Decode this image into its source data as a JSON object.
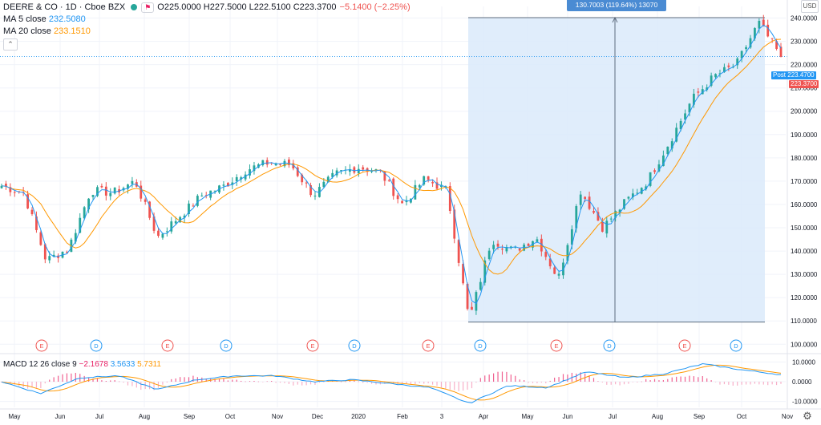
{
  "header": {
    "symbol": "DEERE & CO · 1D · Cboe BZX",
    "ohlc": "O225.0000 H227.5000 L222.5100 C223.3700",
    "change": "−5.1400 (−2.25%)"
  },
  "indicators": {
    "ma5_label": "MA 5 close",
    "ma5_value": "232.5080",
    "ma20_label": "MA 20 close",
    "ma20_value": "233.1510",
    "macd_label": "MACD 12 26 close 9",
    "macd_hist": "−2.1678",
    "macd_line": "3.5633",
    "macd_signal": "5.7311"
  },
  "currency": "USD",
  "measure_label": "130.7003 (119.64%) 13070",
  "price_tags": {
    "post_label": "Post",
    "post_value": "223.4700",
    "last_value": "223.3700"
  },
  "colors": {
    "up": "#26a69a",
    "down": "#ef5350",
    "ma5": "#2196f3",
    "ma20": "#ff9800",
    "measure_fill": "#dbeafa",
    "earnings": "#ef5350",
    "dividend": "#2196f3"
  },
  "chart_data": {
    "type": "candlestick",
    "title": "DEERE & CO · 1D · Cboe BZX",
    "y_axis": {
      "range": [
        97,
        245
      ],
      "ticks": [
        "100.0000",
        "110.0000",
        "120.0000",
        "130.0000",
        "140.0000",
        "150.0000",
        "160.0000",
        "170.0000",
        "180.0000",
        "190.0000",
        "200.0000",
        "210.0000",
        "220.0000",
        "230.0000",
        "240.0000"
      ]
    },
    "x_axis": {
      "ticks": [
        "May",
        "Jun",
        "Jul",
        "Aug",
        "Sep",
        "Oct",
        "Nov",
        "Dec",
        "2020",
        "Feb",
        "3",
        "Apr",
        "May",
        "Jun",
        "Jul",
        "Aug",
        "Sep",
        "Oct",
        "Nov"
      ]
    },
    "price_path": [
      [
        "May",
        168
      ],
      [
        "May",
        165
      ],
      [
        "Jun",
        136
      ],
      [
        "Jun",
        141
      ],
      [
        "Jul",
        166
      ],
      [
        "Jul",
        165
      ],
      [
        "Aug",
        170
      ],
      [
        "Aug",
        146
      ],
      [
        "Sep",
        155
      ],
      [
        "Sep",
        164
      ],
      [
        "Oct",
        168
      ],
      [
        "Oct",
        175
      ],
      [
        "Nov",
        178
      ],
      [
        "Nov",
        177
      ],
      [
        "Dec",
        164
      ],
      [
        "Dec",
        173
      ],
      [
        "2020",
        176
      ],
      [
        "2020",
        174
      ],
      [
        "Feb",
        160
      ],
      [
        "Feb",
        171
      ],
      [
        "3",
        166
      ],
      [
        "3",
        110
      ],
      [
        "Apr",
        145
      ],
      [
        "Apr",
        140
      ],
      [
        "May",
        146
      ],
      [
        "May",
        128
      ],
      [
        "Jun",
        166
      ],
      [
        "Jun",
        150
      ],
      [
        "Jul",
        161
      ],
      [
        "Jul",
        170
      ],
      [
        "Aug",
        187
      ],
      [
        "Aug",
        205
      ],
      [
        "Sep",
        215
      ],
      [
        "Sep",
        220
      ],
      [
        "Oct",
        238
      ],
      [
        "Oct",
        223.37
      ]
    ],
    "ma5_last": 232.508,
    "ma20_last": 233.151,
    "last_close": 223.37,
    "post_price": 223.47,
    "measure": {
      "from_price": 109.5,
      "to_price": 240.2,
      "label": "130.7003 (119.64%) 13070"
    },
    "events": [
      {
        "type": "E",
        "near": "Jun"
      },
      {
        "type": "D",
        "near": "Jul"
      },
      {
        "type": "E",
        "near": "Aug"
      },
      {
        "type": "D",
        "near": "Sep"
      },
      {
        "type": "E",
        "near": "Nov"
      },
      {
        "type": "D",
        "near": "Dec"
      },
      {
        "type": "E",
        "near": "Feb"
      },
      {
        "type": "D",
        "near": "Apr"
      },
      {
        "type": "E",
        "near": "Jun"
      },
      {
        "type": "D",
        "near": "Jul"
      },
      {
        "type": "E",
        "near": "Aug"
      },
      {
        "type": "D",
        "near": "Oct"
      }
    ],
    "macd": {
      "y_ticks": [
        "10.0000",
        "0.0000",
        "-10.0000"
      ],
      "range": [
        -13,
        13
      ],
      "path": [
        [
          "May",
          0
        ],
        [
          "Jun",
          -6
        ],
        [
          "Jul",
          2
        ],
        [
          "Aug",
          3
        ],
        [
          "Aug",
          -4
        ],
        [
          "Sep",
          1
        ],
        [
          "Oct",
          3
        ],
        [
          "Nov",
          3
        ],
        [
          "Dec",
          0
        ],
        [
          "2020",
          1
        ],
        [
          "Feb",
          -1
        ],
        [
          "3",
          -3
        ],
        [
          "Apr",
          -11
        ],
        [
          "Apr",
          -2
        ],
        [
          "May",
          -3
        ],
        [
          "Jun",
          5
        ],
        [
          "Jul",
          2
        ],
        [
          "Aug",
          4
        ],
        [
          "Sep",
          9
        ],
        [
          "Oct",
          6
        ],
        [
          "Nov",
          3.56
        ]
      ]
    }
  }
}
